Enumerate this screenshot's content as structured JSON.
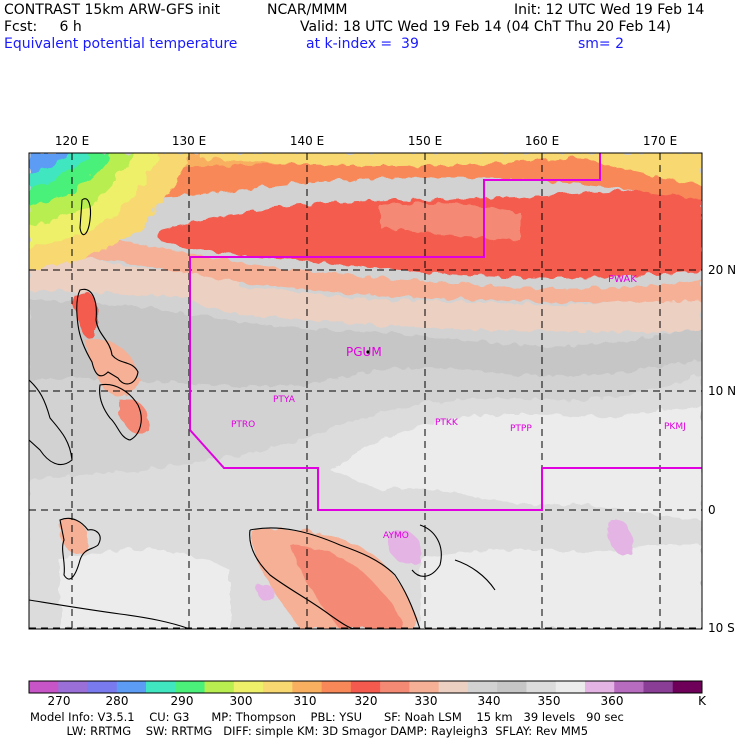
{
  "header": {
    "line1_left": "CONTRAST 15km ARW-GFS init",
    "line1_mid": "NCAR/MMM",
    "line1_right": "Init: 12 UTC Wed 19 Feb 14",
    "line2_left": "Fcst:     6 h",
    "line2_right": "Valid: 18 UTC Wed 19 Feb 14 (04 ChT Thu 20 Feb 14)",
    "line3_left": "Equivalent potential temperature",
    "line3_mid": "at k-index =  39",
    "line3_right": "sm= 2"
  },
  "longitude_labels": [
    "120 E",
    "130 E",
    "140 E",
    "150 E",
    "160 E",
    "170 E"
  ],
  "latitude_labels": [
    "20 N",
    "10 N",
    "0",
    "10 S"
  ],
  "stations": [
    {
      "id": "PWAK"
    },
    {
      "id": "PGUM"
    },
    {
      "id": "PTYA"
    },
    {
      "id": "PTRO"
    },
    {
      "id": "PTKK"
    },
    {
      "id": "PTPP"
    },
    {
      "id": "PKMJ"
    },
    {
      "id": "AYMO"
    }
  ],
  "colorbar": {
    "labels": [
      "270",
      "280",
      "290",
      "300",
      "310",
      "320",
      "330",
      "340",
      "350",
      "360",
      "K"
    ],
    "colors": [
      "#c855c8",
      "#9a6fd8",
      "#7a7aef",
      "#5c9cf4",
      "#3fe6c0",
      "#4af07a",
      "#b8ee50",
      "#eef06a",
      "#f8d870",
      "#f8b060",
      "#f88858",
      "#f45b4e",
      "#f48a74",
      "#f5b096",
      "#ecd0c2",
      "#d2d2d2",
      "#c6c6c6",
      "#dcdcdc",
      "#ececec",
      "#e4b4e4",
      "#b86cc0",
      "#8a3e96",
      "#6e005a"
    ]
  },
  "footer": {
    "line1": "Model Info: V3.5.1    CU: G3      MP: Thompson    PBL: YSU      SF: Noah LSM    15 km   39 levels   90 sec",
    "line2": "          LW: RRTMG    SW: RRTMG   DIFF: simple KM: 3D Smagor DAMP: Rayleigh3  SFLAY: Rev MM5"
  }
}
